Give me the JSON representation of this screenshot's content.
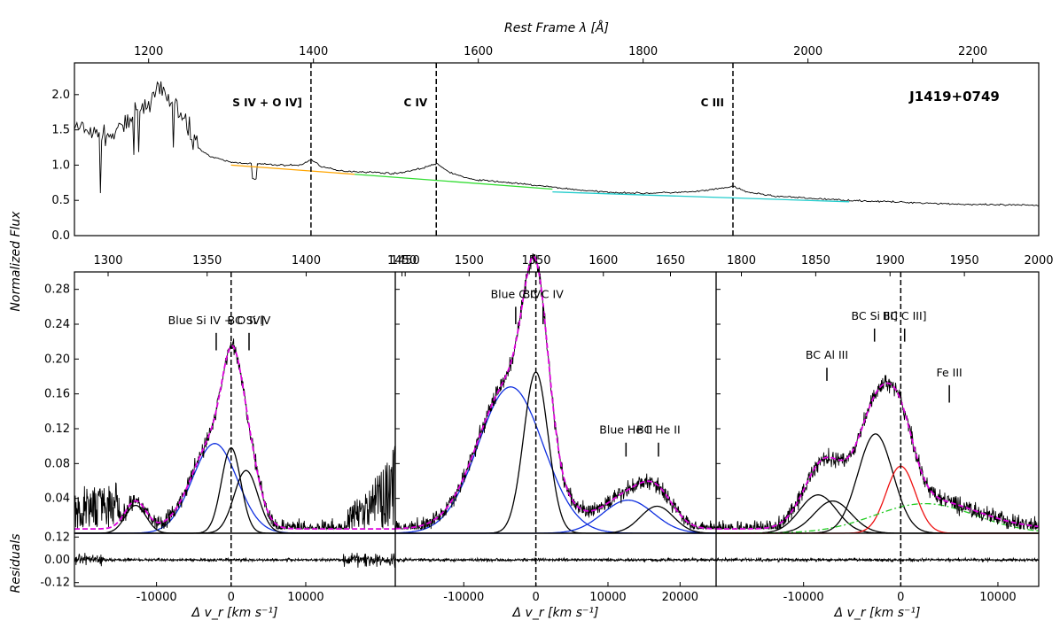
{
  "chart_data": [
    {
      "type": "line",
      "panel": "top-spectrum",
      "object_name": "J1419+0749",
      "title_top_axis": "Rest Frame λ [Å]",
      "ylabel_shared": "Normalized Flux",
      "xlim": [
        1110,
        2280
      ],
      "ylim": [
        0.0,
        2.45
      ],
      "x_ticks": [
        1200,
        1400,
        1600,
        1800,
        2000,
        2200
      ],
      "y_ticks": [
        "0.0",
        "0.5",
        "1.0",
        "1.5",
        "2.0"
      ],
      "line_markers": [
        {
          "x": 1397,
          "label": "S IV + O IV]"
        },
        {
          "x": 1549,
          "label": "C IV"
        },
        {
          "x": 1909,
          "label": "C III"
        }
      ],
      "continuum_windows": [
        {
          "color": "#ffa500",
          "x": [
            1300,
            1450
          ],
          "y": [
            1.0,
            0.87
          ]
        },
        {
          "color": "#33dd33",
          "x": [
            1450,
            1690
          ],
          "y": [
            0.87,
            0.66
          ]
        },
        {
          "color": "#22cccc",
          "x": [
            1690,
            2050
          ],
          "y": [
            0.62,
            0.48
          ]
        }
      ],
      "spectrum_anchors": [
        [
          1110,
          1.55
        ],
        [
          1130,
          1.45
        ],
        [
          1150,
          1.4
        ],
        [
          1170,
          1.55
        ],
        [
          1185,
          1.75
        ],
        [
          1200,
          1.9
        ],
        [
          1215,
          2.05
        ],
        [
          1230,
          1.9
        ],
        [
          1250,
          1.5
        ],
        [
          1260,
          1.25
        ],
        [
          1275,
          1.12
        ],
        [
          1300,
          1.04
        ],
        [
          1330,
          1.02
        ],
        [
          1360,
          1.0
        ],
        [
          1385,
          1.0
        ],
        [
          1397,
          1.08
        ],
        [
          1410,
          0.98
        ],
        [
          1430,
          0.92
        ],
        [
          1470,
          0.9
        ],
        [
          1500,
          0.88
        ],
        [
          1530,
          0.95
        ],
        [
          1549,
          1.02
        ],
        [
          1565,
          0.9
        ],
        [
          1590,
          0.8
        ],
        [
          1630,
          0.76
        ],
        [
          1680,
          0.7
        ],
        [
          1720,
          0.65
        ],
        [
          1750,
          0.62
        ],
        [
          1800,
          0.6
        ],
        [
          1860,
          0.62
        ],
        [
          1890,
          0.66
        ],
        [
          1909,
          0.7
        ],
        [
          1925,
          0.62
        ],
        [
          1960,
          0.56
        ],
        [
          2000,
          0.53
        ],
        [
          2050,
          0.5
        ],
        [
          2100,
          0.48
        ],
        [
          2150,
          0.46
        ],
        [
          2200,
          0.44
        ],
        [
          2280,
          0.43
        ]
      ]
    },
    {
      "type": "line",
      "panel": "Si IV region",
      "top_axis_ticks": [
        "1300",
        "1350",
        "1400",
        "1450"
      ],
      "xlim": [
        -21000,
        22000
      ],
      "ylim": [
        0.0,
        0.3
      ],
      "y_ticks": [
        "0.04",
        "0.08",
        "0.12",
        "0.16",
        "0.20",
        "0.24",
        "0.28"
      ],
      "x_ticks": [
        "-10000",
        "0",
        "10000"
      ],
      "x_tick_values": [
        -10000,
        0,
        10000
      ],
      "xlabel": "Δ v_r [km s⁻¹]",
      "annotations": [
        {
          "label": "Blue Si IV + O IV]",
          "x": -2000,
          "tick_y": [
            0.23,
            0.21
          ]
        },
        {
          "label": "BC Si IV",
          "x": 2400,
          "tick_y": [
            0.23,
            0.21
          ]
        }
      ],
      "components": [
        {
          "name": "Blue Si IV",
          "color": "#1030e0",
          "style": "solid",
          "center": -2200,
          "sigma": 3000,
          "amp": 0.103
        },
        {
          "name": "BC Si IV (a)",
          "color": "#000000",
          "style": "solid",
          "center": 0,
          "sigma": 1300,
          "amp": 0.098
        },
        {
          "name": "BC Si IV (b)",
          "color": "#000000",
          "style": "solid",
          "center": 2000,
          "sigma": 1600,
          "amp": 0.072
        },
        {
          "name": "outflow wing",
          "color": "#000000",
          "style": "solid",
          "center": -12800,
          "sigma": 1400,
          "amp": 0.032
        }
      ],
      "fit": {
        "color": "#dd00dd",
        "style": "dashed"
      },
      "residual_ylim": [
        -0.14,
        0.14
      ],
      "residual_ticks": [
        "0.12",
        "0.00",
        "-0.12"
      ],
      "ylabel_residual": "Residuals"
    },
    {
      "type": "line",
      "panel": "C IV region",
      "top_axis_ticks": [
        "1450",
        "1500",
        "1550",
        "1600",
        "1650"
      ],
      "xlim": [
        -19500,
        25000
      ],
      "ylim": [
        0.0,
        0.3
      ],
      "x_ticks": [
        "-10000",
        "0",
        "10000",
        "20000"
      ],
      "x_tick_values": [
        -10000,
        0,
        10000,
        20000
      ],
      "xlabel": "Δ v_r [km s⁻¹]",
      "annotations": [
        {
          "label": "Blue C IV",
          "x": -2800,
          "tick_y": [
            0.26,
            0.24
          ]
        },
        {
          "label": "BC C IV",
          "x": 1000,
          "tick_y": [
            0.26,
            0.24
          ]
        },
        {
          "label": "Blue He II",
          "x": 12500,
          "tick_y": [
            0.104,
            0.088
          ]
        },
        {
          "label": "BC He II",
          "x": 17000,
          "tick_y": [
            0.104,
            0.088
          ]
        }
      ],
      "components": [
        {
          "name": "Blue C IV",
          "color": "#1030e0",
          "style": "solid",
          "center": -3500,
          "sigma": 4500,
          "amp": 0.168
        },
        {
          "name": "BC C IV",
          "color": "#000000",
          "style": "solid",
          "center": 0,
          "sigma": 1700,
          "amp": 0.185
        },
        {
          "name": "Blue He II",
          "color": "#1030e0",
          "style": "solid",
          "center": 12800,
          "sigma": 3500,
          "amp": 0.038
        },
        {
          "name": "BC He II",
          "color": "#000000",
          "style": "solid",
          "center": 16800,
          "sigma": 2300,
          "amp": 0.031
        }
      ],
      "fit": {
        "color": "#dd00dd",
        "style": "dashed"
      },
      "residual_ylim": [
        -0.14,
        0.14
      ]
    },
    {
      "type": "line",
      "panel": "C III] region",
      "top_axis_ticks": [
        "1800",
        "1850",
        "1900",
        "1950",
        "2000"
      ],
      "xlim": [
        -19000,
        14200
      ],
      "ylim": [
        0.0,
        0.3
      ],
      "x_ticks": [
        "-10000",
        "0",
        "10000"
      ],
      "x_tick_values": [
        -10000,
        0,
        10000
      ],
      "xlabel": "Δ v_r [km s⁻¹]",
      "annotations": [
        {
          "label": "BC Al III",
          "x": -7600,
          "tick_y": [
            0.19,
            0.175
          ]
        },
        {
          "label": "BC Si III]",
          "x": -2700,
          "tick_y": [
            0.235,
            0.22
          ]
        },
        {
          "label": "BC C III]",
          "x": 400,
          "tick_y": [
            0.235,
            0.22
          ]
        },
        {
          "label": "Fe III",
          "x": 5000,
          "tick_y": [
            0.17,
            0.15
          ]
        }
      ],
      "components": [
        {
          "name": "BC Al III (a)",
          "color": "#000000",
          "style": "solid",
          "center": -8500,
          "sigma": 1900,
          "amp": 0.044
        },
        {
          "name": "BC Al III (b)",
          "color": "#000000",
          "style": "solid",
          "center": -7000,
          "sigma": 1900,
          "amp": 0.037
        },
        {
          "name": "BC Si III]",
          "color": "#000000",
          "style": "solid",
          "center": -2600,
          "sigma": 1800,
          "amp": 0.114
        },
        {
          "name": "BC C III]",
          "color": "#ee1111",
          "style": "solid",
          "center": 0,
          "sigma": 1500,
          "amp": 0.077
        },
        {
          "name": "Fe III",
          "color": "#22cc22",
          "style": "dashdot",
          "center": 2500,
          "sigma": 5200,
          "amp": 0.034
        }
      ],
      "fit": {
        "color": "#dd00dd",
        "style": "dashed"
      },
      "residual_ylim": [
        -0.14,
        0.14
      ]
    }
  ]
}
